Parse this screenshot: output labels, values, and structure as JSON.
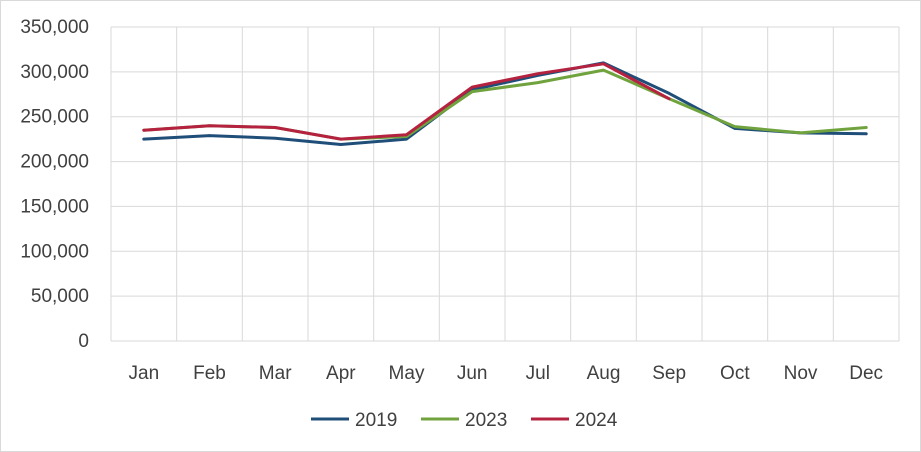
{
  "chart_data": {
    "type": "line",
    "title": "",
    "xlabel": "",
    "ylabel": "",
    "categories": [
      "Jan",
      "Feb",
      "Mar",
      "Apr",
      "May",
      "Jun",
      "Jul",
      "Aug",
      "Sep",
      "Oct",
      "Nov",
      "Dec"
    ],
    "ylim": [
      0,
      350000
    ],
    "yticks": [
      0,
      50000,
      100000,
      150000,
      200000,
      250000,
      300000,
      350000
    ],
    "ytick_labels": [
      "0",
      "50,000",
      "100,000",
      "150,000",
      "200,000",
      "250,000",
      "300,000",
      "350,000"
    ],
    "grid": true,
    "legend_position": "bottom",
    "series": [
      {
        "name": "2019",
        "color": "#1f4e79",
        "values": [
          225000,
          229000,
          226000,
          219000,
          225000,
          280000,
          296000,
          310000,
          276000,
          237000,
          232000,
          231000
        ]
      },
      {
        "name": "2023",
        "color": "#70a33e",
        "values": [
          235000,
          240000,
          238000,
          225000,
          228000,
          278000,
          288000,
          302000,
          270000,
          239000,
          232000,
          238000
        ]
      },
      {
        "name": "2024",
        "color": "#b5223f",
        "values": [
          235000,
          240000,
          238000,
          225000,
          230000,
          283000,
          298000,
          309000,
          270000,
          null,
          null,
          null
        ]
      }
    ]
  }
}
